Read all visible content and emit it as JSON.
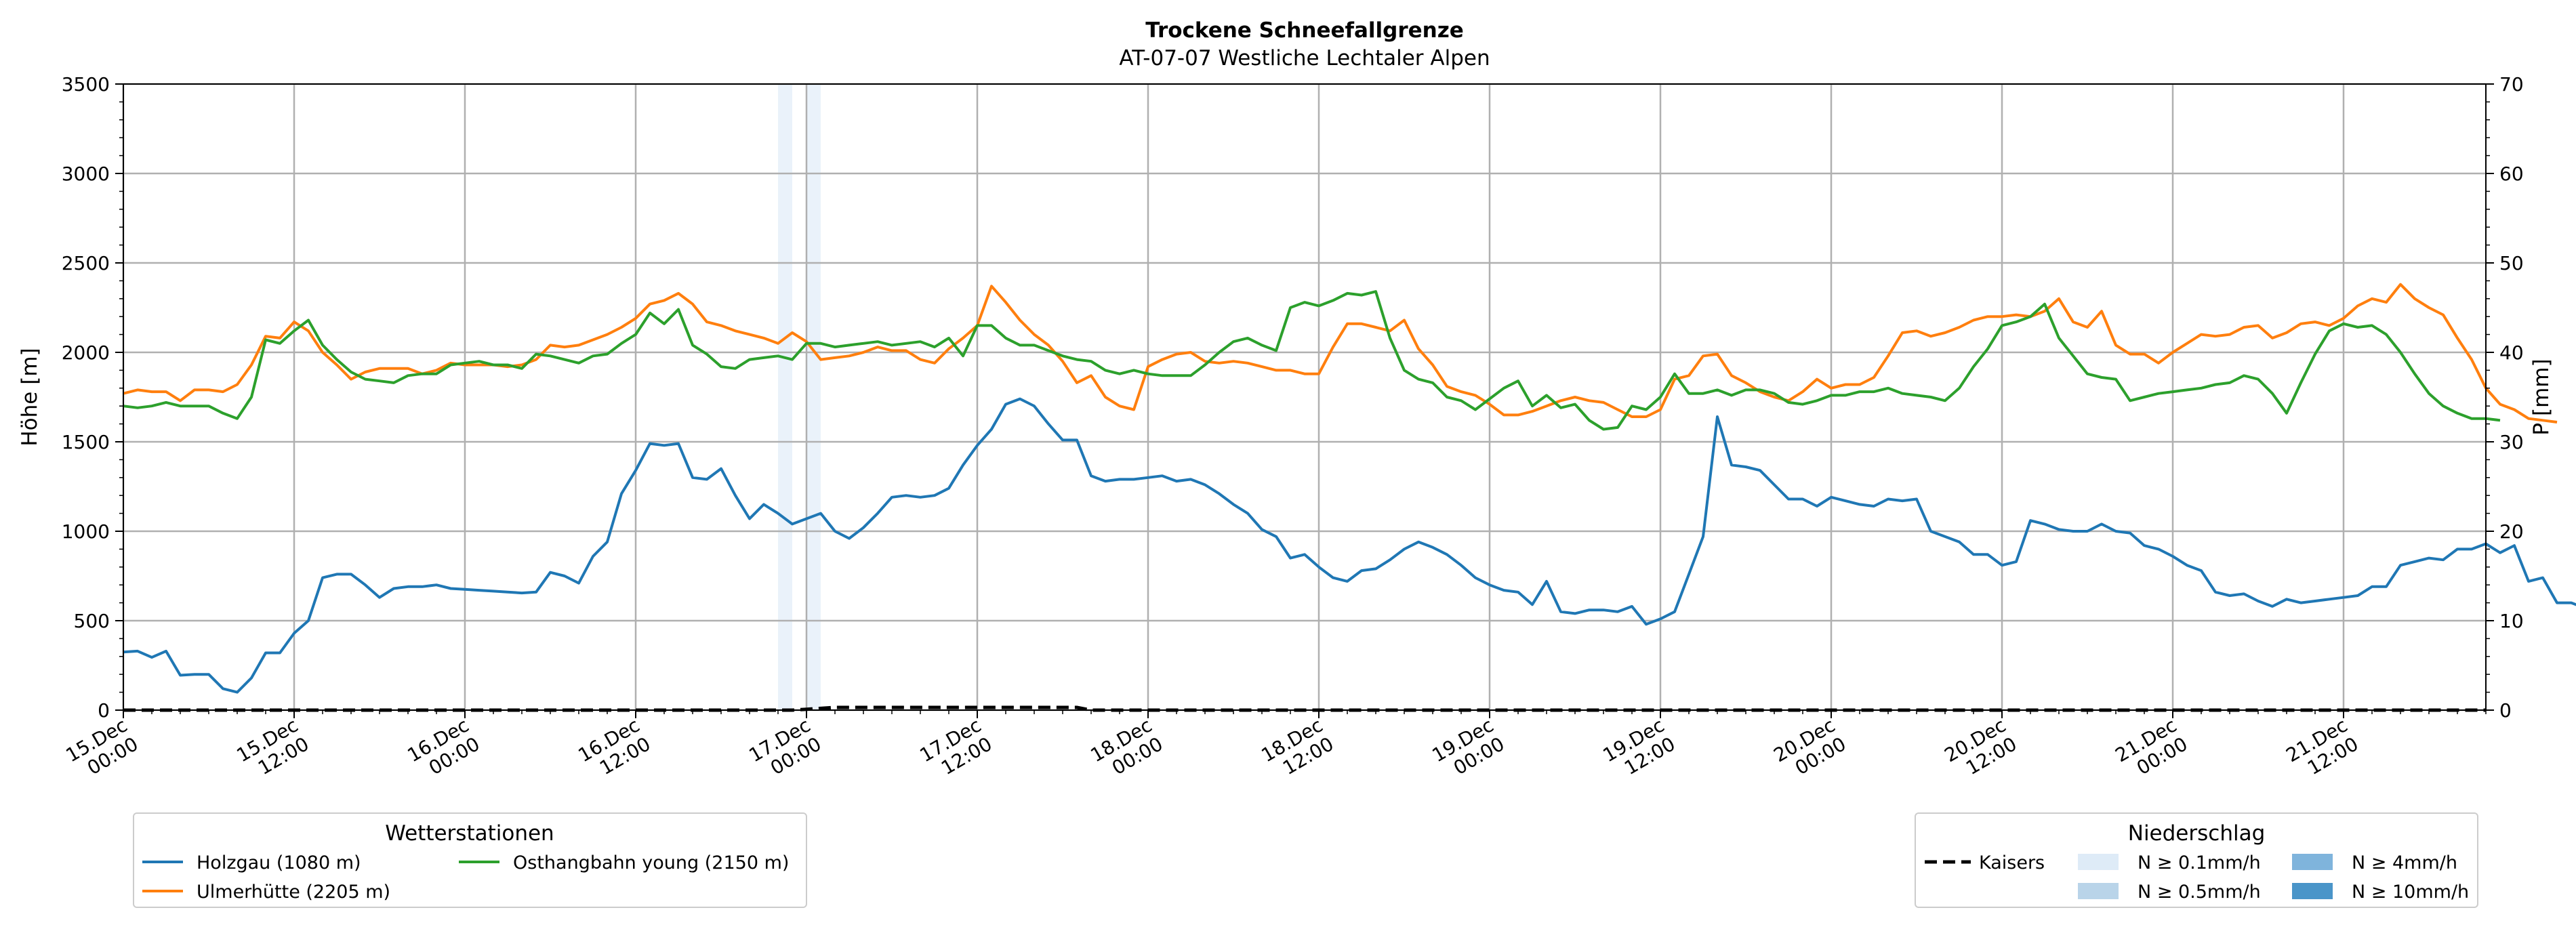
{
  "chart_data": {
    "type": "line",
    "title": "Trockene Schneefallgrenze",
    "subtitle": "AT-07-07 Westliche Lechtaler Alpen",
    "ylabel": "Höhe [m]",
    "ylabel_right": "P [mm]",
    "ylim": [
      0,
      3500
    ],
    "ylim_right": [
      0,
      70
    ],
    "yticks": [
      "0",
      "500",
      "1000",
      "1500",
      "2000",
      "2500",
      "3000",
      "3500"
    ],
    "yticks_right": [
      "0",
      "10",
      "20",
      "30",
      "40",
      "50",
      "60",
      "70"
    ],
    "x_start": "2024-12-15T00:00",
    "x_end": "2024-12-21T22:00",
    "x_step_hours": 1,
    "xticks": [
      {
        "t": "2024-12-15T00:00",
        "l1": "15.Dec",
        "l2": "00:00"
      },
      {
        "t": "2024-12-15T12:00",
        "l1": "15.Dec",
        "l2": "12:00"
      },
      {
        "t": "2024-12-16T00:00",
        "l1": "16.Dec",
        "l2": "00:00"
      },
      {
        "t": "2024-12-16T12:00",
        "l1": "16.Dec",
        "l2": "12:00"
      },
      {
        "t": "2024-12-17T00:00",
        "l1": "17.Dec",
        "l2": "00:00"
      },
      {
        "t": "2024-12-17T12:00",
        "l1": "17.Dec",
        "l2": "12:00"
      },
      {
        "t": "2024-12-18T00:00",
        "l1": "18.Dec",
        "l2": "00:00"
      },
      {
        "t": "2024-12-18T12:00",
        "l1": "18.Dec",
        "l2": "12:00"
      },
      {
        "t": "2024-12-19T00:00",
        "l1": "19.Dec",
        "l2": "00:00"
      },
      {
        "t": "2024-12-19T12:00",
        "l1": "19.Dec",
        "l2": "12:00"
      },
      {
        "t": "2024-12-20T00:00",
        "l1": "20.Dec",
        "l2": "00:00"
      },
      {
        "t": "2024-12-20T12:00",
        "l1": "20.Dec",
        "l2": "12:00"
      },
      {
        "t": "2024-12-21T00:00",
        "l1": "21.Dec",
        "l2": "00:00"
      },
      {
        "t": "2024-12-21T12:00",
        "l1": "21.Dec",
        "l2": "12:00"
      }
    ],
    "grid": true,
    "precip_bands": [
      {
        "start": "2024-12-16T22:00",
        "end": "2024-12-16T23:00",
        "level": "N ≥ 0.1mm/h"
      },
      {
        "start": "2024-12-17T00:00",
        "end": "2024-12-17T01:00",
        "level": "N ≥ 0.1mm/h"
      }
    ],
    "series": [
      {
        "name": "Holzgau (1080 m)",
        "color": "#1f77b4",
        "values": [
          325,
          330,
          295,
          330,
          195,
          200,
          200,
          120,
          100,
          180,
          320,
          320,
          430,
          500,
          740,
          760,
          760,
          700,
          630,
          680,
          690,
          690,
          700,
          680,
          675,
          670,
          665,
          660,
          655,
          660,
          770,
          750,
          710,
          860,
          940,
          1210,
          1340,
          1490,
          1480,
          1490,
          1300,
          1290,
          1350,
          1200,
          1070,
          1150,
          1100,
          1040,
          1070,
          1100,
          1000,
          960,
          1020,
          1100,
          1190,
          1200,
          1190,
          1200,
          1240,
          1370,
          1480,
          1570,
          1710,
          1740,
          1700,
          1600,
          1510,
          1510,
          1310,
          1280,
          1290,
          1290,
          1300,
          1310,
          1280,
          1290,
          1260,
          1210,
          1150,
          1100,
          1010,
          970,
          850,
          870,
          800,
          740,
          720,
          780,
          790,
          840,
          900,
          940,
          910,
          870,
          810,
          740,
          700,
          670,
          660,
          590,
          720,
          550,
          540,
          560,
          560,
          550,
          580,
          480,
          510,
          550,
          760,
          970,
          1640,
          1370,
          1360,
          1340,
          1260,
          1180,
          1180,
          1140,
          1190,
          1170,
          1150,
          1140,
          1180,
          1170,
          1180,
          1000,
          970,
          940,
          870,
          870,
          810,
          830,
          1060,
          1040,
          1010,
          1000,
          1000,
          1040,
          1000,
          990,
          920,
          900,
          860,
          810,
          780,
          660,
          640,
          650,
          610,
          580,
          620,
          600,
          610,
          620,
          630,
          640,
          690,
          690,
          810,
          830,
          850,
          840,
          900,
          900,
          930,
          880,
          920,
          720,
          740,
          600,
          600,
          570,
          560
        ]
      },
      {
        "name": "Ulmerhütte (2205 m)",
        "color": "#ff7f0e",
        "values": [
          1770,
          1790,
          1780,
          1780,
          1730,
          1790,
          1790,
          1780,
          1820,
          1930,
          2090,
          2080,
          2170,
          2120,
          2000,
          1930,
          1850,
          1890,
          1910,
          1910,
          1910,
          1880,
          1900,
          1940,
          1930,
          1930,
          1930,
          1920,
          1930,
          1960,
          2040,
          2030,
          2040,
          2070,
          2100,
          2140,
          2190,
          2270,
          2290,
          2330,
          2270,
          2170,
          2150,
          2120,
          2100,
          2080,
          2050,
          2110,
          2060,
          1960,
          1970,
          1980,
          2000,
          2030,
          2010,
          2010,
          1960,
          1940,
          2020,
          2080,
          2150,
          2370,
          2280,
          2180,
          2100,
          2040,
          1950,
          1830,
          1870,
          1750,
          1700,
          1680,
          1920,
          1960,
          1990,
          2000,
          1950,
          1940,
          1950,
          1940,
          1920,
          1900,
          1900,
          1880,
          1880,
          2030,
          2160,
          2160,
          2140,
          2120,
          2180,
          2020,
          1930,
          1810,
          1780,
          1760,
          1710,
          1650,
          1650,
          1670,
          1700,
          1730,
          1750,
          1730,
          1720,
          1680,
          1640,
          1640,
          1680,
          1850,
          1870,
          1980,
          1990,
          1870,
          1830,
          1780,
          1750,
          1730,
          1780,
          1850,
          1800,
          1820,
          1820,
          1860,
          1980,
          2110,
          2120,
          2090,
          2110,
          2140,
          2180,
          2200,
          2200,
          2210,
          2200,
          2230,
          2300,
          2170,
          2140,
          2230,
          2040,
          1990,
          1990,
          1940,
          2000,
          2050,
          2100,
          2090,
          2100,
          2140,
          2150,
          2080,
          2110,
          2160,
          2170,
          2150,
          2190,
          2260,
          2300,
          2280,
          2380,
          2300,
          2250,
          2210,
          2080,
          1960,
          1800,
          1710,
          1680,
          1630,
          1620,
          1610
        ]
      },
      {
        "name": "Osthangbahn young (2150 m)",
        "color": "#2ca02c",
        "values": [
          1700,
          1690,
          1700,
          1720,
          1700,
          1700,
          1700,
          1660,
          1630,
          1750,
          2070,
          2050,
          2120,
          2180,
          2040,
          1960,
          1890,
          1850,
          1840,
          1830,
          1870,
          1880,
          1880,
          1930,
          1940,
          1950,
          1930,
          1930,
          1910,
          1990,
          1980,
          1960,
          1940,
          1980,
          1990,
          2050,
          2100,
          2220,
          2160,
          2240,
          2040,
          1990,
          1920,
          1910,
          1960,
          1970,
          1980,
          1960,
          2050,
          2050,
          2030,
          2040,
          2050,
          2060,
          2040,
          2050,
          2060,
          2030,
          2080,
          1980,
          2150,
          2150,
          2080,
          2040,
          2040,
          2010,
          1980,
          1960,
          1950,
          1900,
          1880,
          1900,
          1880,
          1870,
          1870,
          1870,
          1930,
          2000,
          2060,
          2080,
          2040,
          2010,
          2250,
          2280,
          2260,
          2290,
          2330,
          2320,
          2340,
          2080,
          1900,
          1850,
          1830,
          1750,
          1730,
          1680,
          1740,
          1800,
          1840,
          1700,
          1760,
          1690,
          1710,
          1620,
          1570,
          1580,
          1700,
          1680,
          1750,
          1880,
          1770,
          1770,
          1790,
          1760,
          1790,
          1790,
          1770,
          1720,
          1710,
          1730,
          1760,
          1760,
          1780,
          1780,
          1800,
          1770,
          1760,
          1750,
          1730,
          1800,
          1920,
          2020,
          2150,
          2170,
          2200,
          2270,
          2080,
          1980,
          1880,
          1860,
          1850,
          1730,
          1750,
          1770,
          1780,
          1790,
          1800,
          1820,
          1830,
          1870,
          1850,
          1770,
          1660,
          1830,
          1990,
          2120,
          2160,
          2140,
          2150,
          2100,
          2000,
          1880,
          1770,
          1700,
          1660,
          1630,
          1630,
          1620
        ]
      }
    ],
    "precip_series": {
      "name": "Kaisers",
      "start": "2024-12-17T00:00",
      "values": [
        0.1,
        0.2,
        0.3,
        0.3,
        0.3,
        0.3,
        0.3,
        0.3,
        0.3,
        0.3,
        0.3,
        0.3,
        0.3,
        0.3,
        0.3,
        0.3,
        0.3,
        0.3,
        0.3,
        0.3
      ]
    },
    "legend_stations": {
      "title": "Wetterstationen",
      "placement": "bottom-left"
    },
    "legend_precip": {
      "title": "Niederschlag",
      "placement": "bottom-right",
      "line_label": "Kaisers",
      "levels": [
        {
          "label": "N ≥ 0.1mm/h",
          "color": "#deebf7"
        },
        {
          "label": "N ≥ 0.5mm/h",
          "color": "#b9d4e9"
        },
        {
          "label": "N ≥ 4mm/h",
          "color": "#7fb4dc"
        },
        {
          "label": "N ≥ 10mm/h",
          "color": "#4a95c9"
        }
      ]
    }
  }
}
